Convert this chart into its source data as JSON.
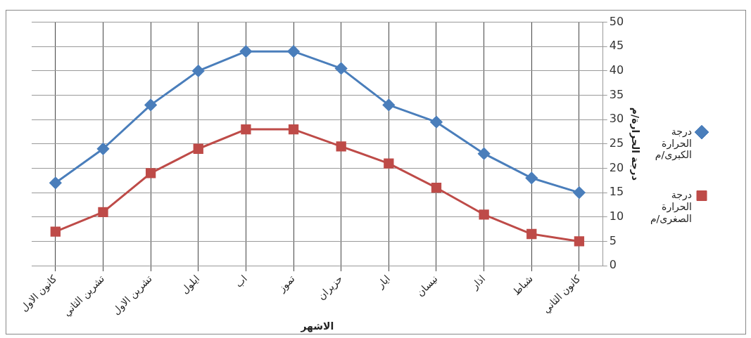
{
  "chart_data": {
    "type": "line",
    "categories": [
      "كانون الاول",
      "تشرين الثاني",
      "تشرين الاول",
      "ايلول",
      "اب",
      "تموز",
      "حزيران",
      "ايار",
      "نيسان",
      "اذار",
      "شباط",
      "كانون الثاني"
    ],
    "series": [
      {
        "name": "درجة الحرارة الكبرى/م",
        "color": "#4a7ebb",
        "marker": "diamond",
        "values": [
          17,
          24,
          33,
          40,
          44,
          44,
          40.5,
          33,
          29.5,
          23,
          18,
          15
        ]
      },
      {
        "name": "درجة الحرارة الصغرى/م",
        "color": "#be4b48",
        "marker": "square",
        "values": [
          7,
          11,
          19,
          24,
          28,
          28,
          24.5,
          21,
          16,
          10.5,
          6.5,
          5
        ]
      }
    ],
    "xlabel": "الاشهر",
    "ylabel": "درجة الحرارة/م",
    "ylim": [
      0,
      50
    ],
    "yticks": [
      0,
      5,
      10,
      15,
      20,
      25,
      30,
      35,
      40,
      45,
      50
    ],
    "grid": true,
    "legend": "right"
  }
}
